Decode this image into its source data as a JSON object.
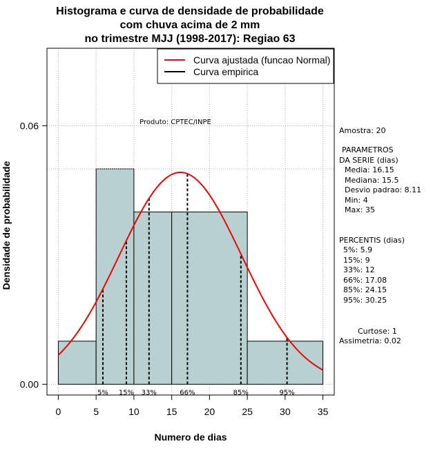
{
  "chart_data": {
    "type": "histogram",
    "title_lines": [
      "Histograma e curva de densidade de probabilidade",
      "com chuva acima de 2 mm",
      "no trimestre MJJ (1998-2017): Regiao 63"
    ],
    "xlabel": "Numero de dias",
    "ylabel": "Densidade de probabilidade",
    "xlim": [
      -1.5,
      36.5
    ],
    "ylim": [
      -0.0025,
      0.078
    ],
    "x_ticks": [
      0,
      5,
      10,
      15,
      20,
      25,
      30,
      35
    ],
    "y_ticks": [
      0.0,
      0.06
    ],
    "y_tick_labels": [
      "0.00",
      "0.06"
    ],
    "bins": [
      {
        "start": 0,
        "end": 5,
        "density": 0.01
      },
      {
        "start": 5,
        "end": 10,
        "density": 0.05
      },
      {
        "start": 10,
        "end": 15,
        "density": 0.04
      },
      {
        "start": 15,
        "end": 25,
        "density": 0.04
      },
      {
        "start": 25,
        "end": 35,
        "density": 0.01
      }
    ],
    "reference_line_y": 0.05,
    "normal_fit": {
      "mean": 16.15,
      "sd": 8.11,
      "x_range": [
        0,
        35
      ]
    },
    "percentile_lines": [
      {
        "label": "5%",
        "x": 5.9
      },
      {
        "label": "15%",
        "x": 9
      },
      {
        "label": "33%",
        "x": 12
      },
      {
        "label": "66%",
        "x": 17.08
      },
      {
        "label": "85%",
        "x": 24.15
      },
      {
        "label": "95%",
        "x": 30.25
      }
    ],
    "legend": [
      {
        "label": "Curva ajustada (funcao Normal)",
        "color": "#ee0000"
      },
      {
        "label": "Curva empirica",
        "color": "#000000"
      }
    ],
    "legend_position": "top-right",
    "annotation": "Produto: CPTEC/INPE",
    "colors": {
      "bar_fill": "#b8d0d0",
      "curve": "#ee0000",
      "grid": "#b0b0b0"
    }
  },
  "side_panel": {
    "amostra": "Amostra: 20",
    "param_header_1": "PARAMETROS",
    "param_header_2": "DA SERIE (dias)",
    "params": [
      "Media: 16.15",
      "Mediana: 15.5",
      "Desvio padrao: 8.11",
      "Min: 4",
      "Max: 35"
    ],
    "percentis_header": "PERCENTIS (dias)",
    "percentis": [
      "5%: 5.9",
      "15%: 9",
      "33%: 12",
      "66%: 17.08",
      "85%: 24.15",
      "95%: 30.25"
    ],
    "curtose": "Curtose: 1",
    "assimetria": "Assimetria: 0.02"
  }
}
